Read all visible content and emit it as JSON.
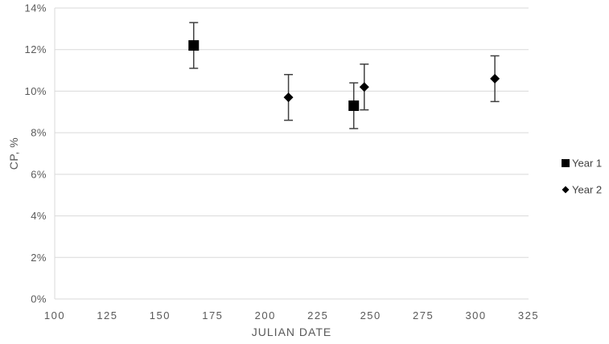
{
  "chart_data": {
    "type": "scatter",
    "title": "",
    "xlabel": "JULIAN DATE",
    "ylabel": "CP, %",
    "xlim": [
      100,
      325
    ],
    "ylim": [
      0,
      14
    ],
    "y_unit": "percent",
    "grid": "horizontal-on",
    "legend_position": "right-middle",
    "x_tick_values": [
      100,
      125,
      150,
      175,
      200,
      225,
      250,
      275,
      300,
      325
    ],
    "x_tick_labels": [
      "100",
      "125",
      "150",
      "175",
      "200",
      "225",
      "250",
      "275",
      "300",
      "325"
    ],
    "y_tick_values": [
      0,
      2,
      4,
      6,
      8,
      10,
      12,
      14
    ],
    "y_tick_labels": [
      "0%",
      "2%",
      "4%",
      "6%",
      "8%",
      "10%",
      "12%",
      "14%"
    ],
    "series": [
      {
        "name": "Year 1",
        "marker": "square",
        "color": "#000000",
        "points": [
          {
            "x": 166,
            "y": 12.2,
            "err": 1.1
          },
          {
            "x": 242,
            "y": 9.3,
            "err": 1.1
          }
        ]
      },
      {
        "name": "Year 2",
        "marker": "diamond",
        "color": "#000000",
        "points": [
          {
            "x": 211,
            "y": 9.7,
            "err": 1.1
          },
          {
            "x": 247,
            "y": 10.2,
            "err": 1.1
          },
          {
            "x": 309,
            "y": 10.6,
            "err": 1.1
          }
        ]
      }
    ]
  },
  "colors": {
    "background": "#ffffff",
    "gridline": "#d9d9d9",
    "axis_line": "#d9d9d9",
    "tick_label": "#595959",
    "axis_title": "#595959",
    "error_bar": "#404040",
    "marker": "#000000",
    "legend_text": "#404040"
  }
}
